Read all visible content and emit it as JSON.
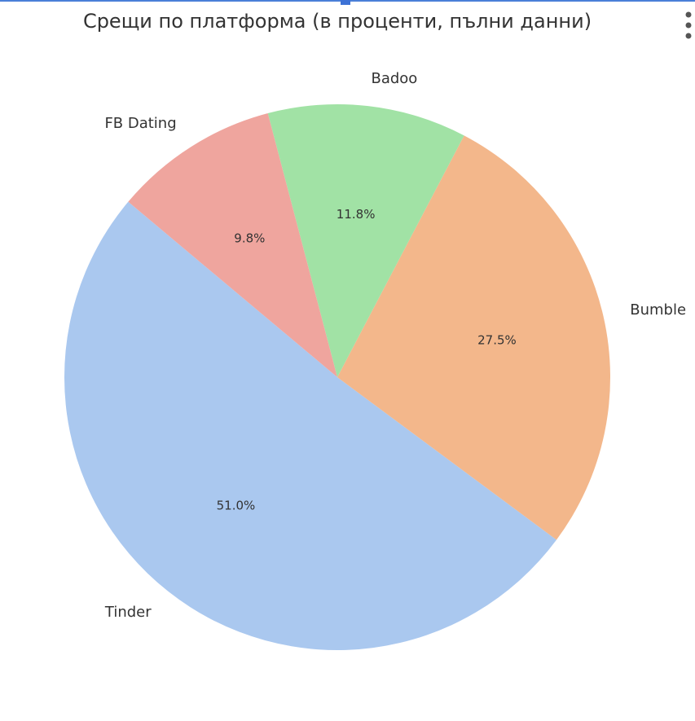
{
  "chart_data": {
    "type": "pie",
    "title": "Срещи по платформа (в проценти, пълни данни)",
    "categories": [
      "Tinder",
      "Bumble",
      "Badoo",
      "FB Dating"
    ],
    "values": [
      51.0,
      27.5,
      11.8,
      9.8
    ],
    "value_labels": [
      "51.0%",
      "27.5%",
      "11.8%",
      "9.8%"
    ],
    "colors": [
      "#aac8ef",
      "#f3b78b",
      "#a1e2a5",
      "#efa59e"
    ],
    "start_angle": 140
  }
}
